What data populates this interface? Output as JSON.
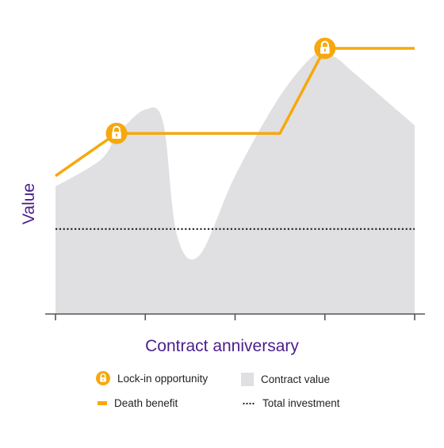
{
  "chart_data": {
    "type": "area",
    "xlabel": "Contract anniversary",
    "ylabel": "Value",
    "x": [
      0,
      1,
      2,
      3,
      4
    ],
    "xlim": [
      0,
      4
    ],
    "ylim": [
      0,
      100
    ],
    "grid": false,
    "legend_placement": "bottom",
    "series": [
      {
        "name": "Contract value",
        "kind": "area",
        "color": "#e0e0e2",
        "x": [
          0,
          0.5,
          0.7,
          1.0,
          1.2,
          1.35,
          1.6,
          2.0,
          2.5,
          2.9,
          3.1,
          3.35,
          4.0
        ],
        "y": [
          48,
          58,
          68,
          77,
          72,
          30,
          22,
          52,
          82,
          98,
          97,
          90,
          71
        ]
      },
      {
        "name": "Death benefit",
        "kind": "line",
        "color": "#f7a80d",
        "x": [
          0,
          0.68,
          2.5,
          3.0,
          4.0
        ],
        "y": [
          52,
          68,
          68,
          100,
          100
        ]
      },
      {
        "name": "Total investment",
        "kind": "dotted-line",
        "color": "#222222",
        "x": [
          0,
          4
        ],
        "y": [
          32,
          32
        ]
      }
    ],
    "markers": [
      {
        "name": "Lock-in opportunity",
        "x": 0.68,
        "y": 68
      },
      {
        "name": "Lock-in opportunity",
        "x": 3.0,
        "y": 100
      }
    ]
  },
  "legend": [
    {
      "id": "lock",
      "label": "Lock-in opportunity",
      "icon": "lock-icon",
      "color": "#f7a80d"
    },
    {
      "id": "death",
      "label": "Death benefit",
      "icon": "line-swatch",
      "color": "#f7a80d"
    },
    {
      "id": "contract",
      "label": "Contract value",
      "icon": "area-swatch",
      "color": "#e0e0e2"
    },
    {
      "id": "total",
      "label": "Total investment",
      "icon": "dotted-swatch",
      "color": "#222222"
    }
  ],
  "colors": {
    "axis_title": "#4b1e8c",
    "axis": "#555555"
  }
}
